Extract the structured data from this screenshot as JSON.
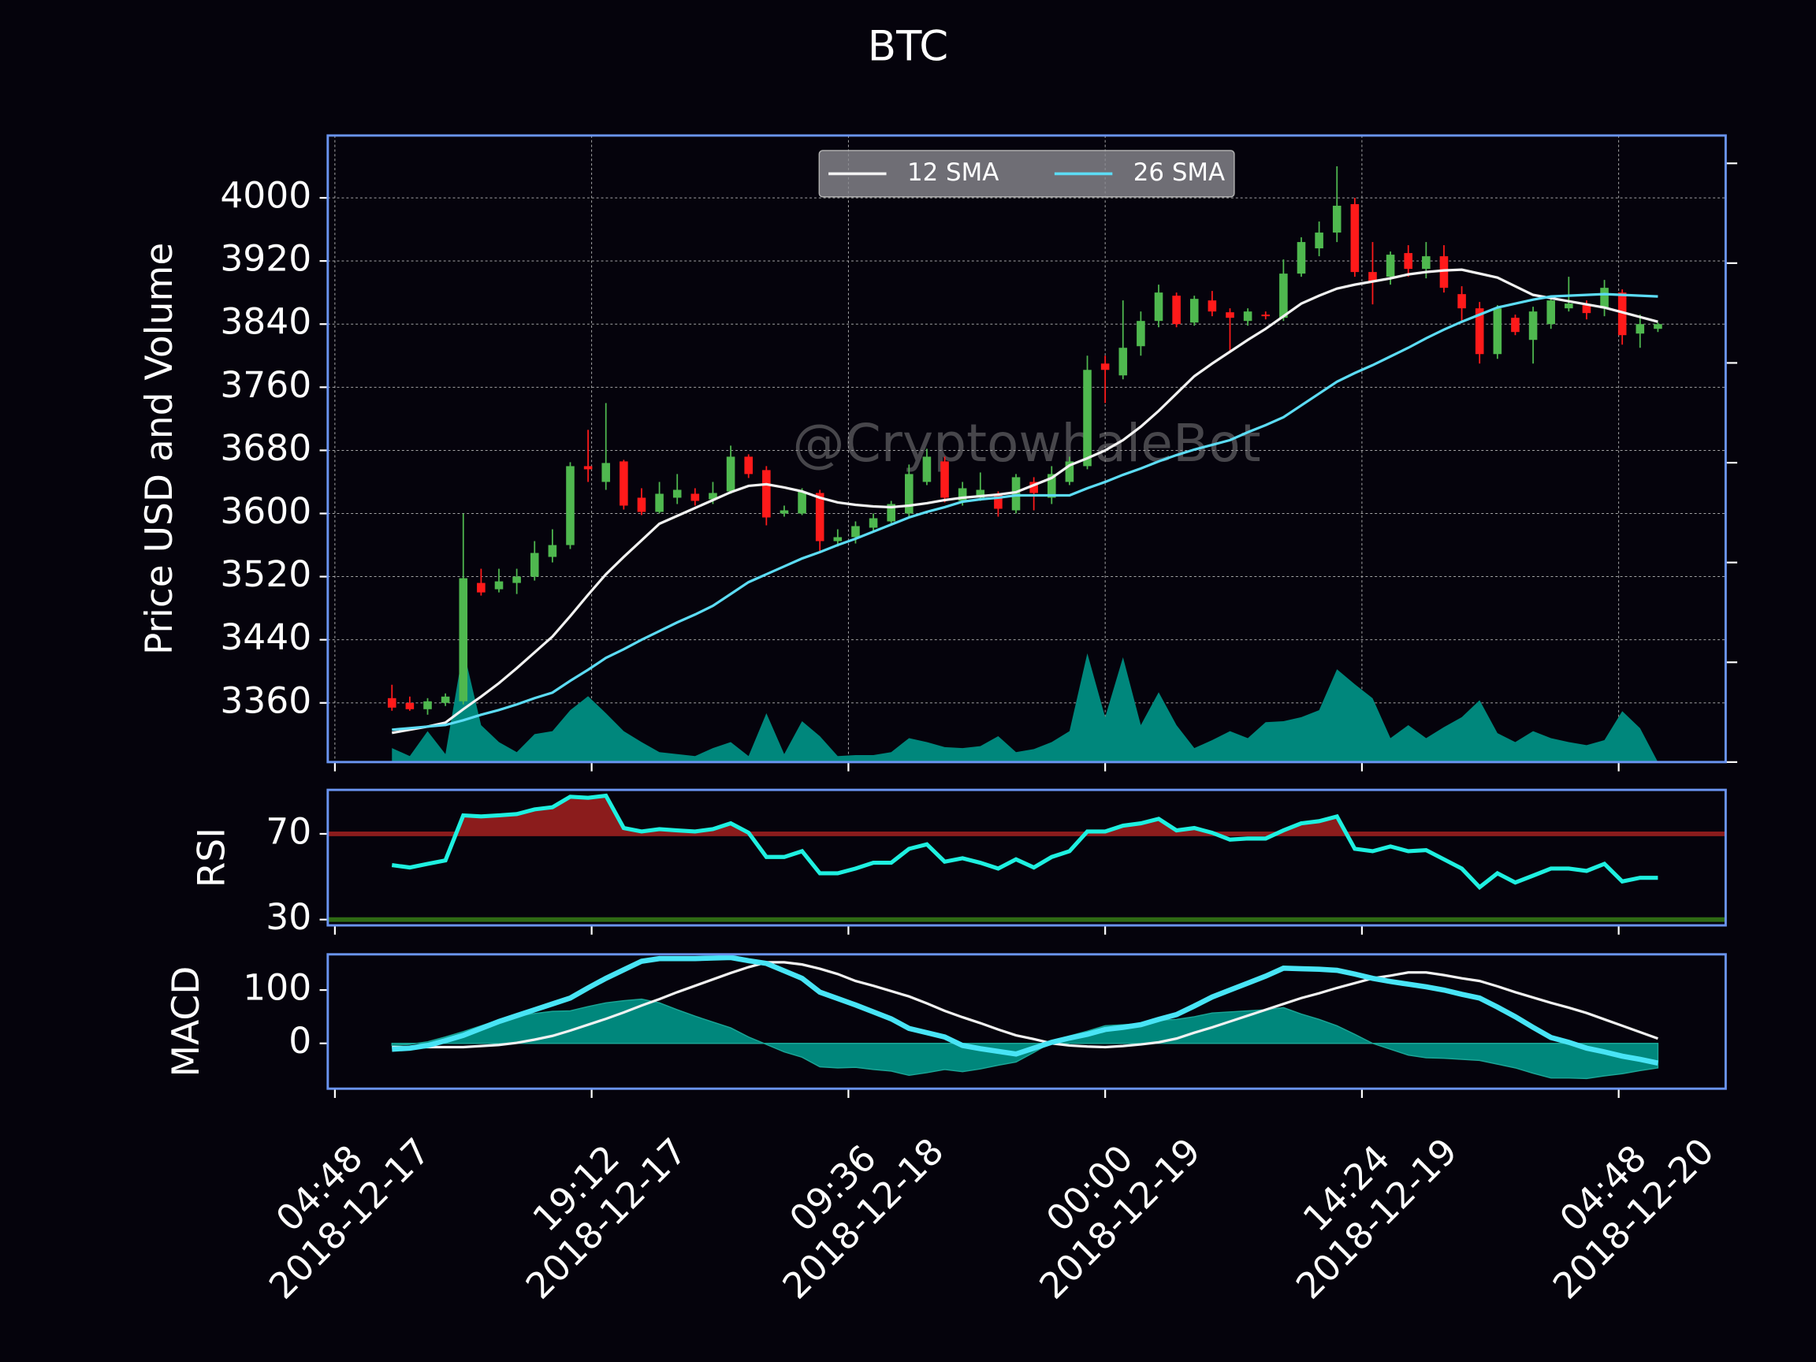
{
  "chart_data": [
    {
      "type": "candlestick",
      "title": "BTC",
      "ylabel": "Price USD and Volume",
      "watermark": "@CryptowhaleBot",
      "x": [
        "2018-12-17 08:00",
        "2018-12-17 09:00",
        "2018-12-17 10:00",
        "2018-12-17 11:00",
        "2018-12-17 12:00",
        "2018-12-17 13:00",
        "2018-12-17 14:00",
        "2018-12-17 15:00",
        "2018-12-17 16:00",
        "2018-12-17 17:00",
        "2018-12-17 18:00",
        "2018-12-17 19:00",
        "2018-12-17 20:00",
        "2018-12-17 21:00",
        "2018-12-17 22:00",
        "2018-12-17 23:00",
        "2018-12-18 00:00",
        "2018-12-18 01:00",
        "2018-12-18 02:00",
        "2018-12-18 03:00",
        "2018-12-18 04:00",
        "2018-12-18 05:00",
        "2018-12-18 06:00",
        "2018-12-18 07:00",
        "2018-12-18 08:00",
        "2018-12-18 09:00",
        "2018-12-18 10:00",
        "2018-12-18 11:00",
        "2018-12-18 12:00",
        "2018-12-18 13:00",
        "2018-12-18 14:00",
        "2018-12-18 15:00",
        "2018-12-18 16:00",
        "2018-12-18 17:00",
        "2018-12-18 18:00",
        "2018-12-18 19:00",
        "2018-12-18 20:00",
        "2018-12-18 21:00",
        "2018-12-18 22:00",
        "2018-12-18 23:00",
        "2018-12-19 00:00",
        "2018-12-19 01:00",
        "2018-12-19 02:00",
        "2018-12-19 03:00",
        "2018-12-19 04:00",
        "2018-12-19 05:00",
        "2018-12-19 06:00",
        "2018-12-19 07:00",
        "2018-12-19 08:00",
        "2018-12-19 09:00",
        "2018-12-19 10:00",
        "2018-12-19 11:00",
        "2018-12-19 12:00",
        "2018-12-19 13:00",
        "2018-12-19 14:00",
        "2018-12-19 15:00",
        "2018-12-19 16:00",
        "2018-12-19 17:00",
        "2018-12-19 18:00",
        "2018-12-19 19:00",
        "2018-12-19 20:00",
        "2018-12-19 21:00",
        "2018-12-19 22:00",
        "2018-12-19 23:00",
        "2018-12-20 00:00",
        "2018-12-20 01:00",
        "2018-12-20 02:00",
        "2018-12-20 03:00",
        "2018-12-20 04:00",
        "2018-12-20 05:00",
        "2018-12-20 06:00",
        "2018-12-20 07:00"
      ],
      "open": [
        3366,
        3360,
        3352,
        3360,
        3362,
        3512,
        3504,
        3512,
        3520,
        3545,
        3560,
        3660,
        3640,
        3666,
        3620,
        3602,
        3620,
        3625,
        3618,
        3628,
        3672,
        3655,
        3600,
        3600,
        3626,
        3565,
        3570,
        3582,
        3590,
        3600,
        3640,
        3666,
        3616,
        3620,
        3624,
        3604,
        3640,
        3620,
        3640,
        3660,
        3790,
        3775,
        3812,
        3844,
        3876,
        3842,
        3870,
        3855,
        3844,
        3852,
        3848,
        3904,
        3936,
        3956,
        3992,
        3906,
        3900,
        3930,
        3910,
        3926,
        3878,
        3860,
        3802,
        3848,
        3820,
        3840,
        3860,
        3864,
        3860,
        3880,
        3828,
        3834
      ],
      "high": [
        3383,
        3368,
        3366,
        3372,
        3600,
        3530,
        3530,
        3530,
        3565,
        3580,
        3665,
        3706,
        3740,
        3668,
        3632,
        3640,
        3650,
        3632,
        3640,
        3686,
        3675,
        3660,
        3610,
        3632,
        3630,
        3580,
        3590,
        3600,
        3616,
        3662,
        3682,
        3672,
        3640,
        3652,
        3628,
        3650,
        3646,
        3660,
        3672,
        3800,
        3800,
        3870,
        3856,
        3890,
        3880,
        3876,
        3882,
        3860,
        3860,
        3856,
        3922,
        3950,
        3970,
        4040,
        4000,
        3944,
        3932,
        3940,
        3944,
        3940,
        3888,
        3868,
        3864,
        3852,
        3862,
        3874,
        3900,
        3870,
        3896,
        3884,
        3852,
        3842
      ],
      "low": [
        3350,
        3350,
        3345,
        3356,
        3358,
        3496,
        3500,
        3498,
        3515,
        3538,
        3555,
        3640,
        3630,
        3605,
        3598,
        3600,
        3612,
        3610,
        3612,
        3625,
        3645,
        3585,
        3596,
        3598,
        3552,
        3558,
        3562,
        3578,
        3588,
        3595,
        3636,
        3614,
        3610,
        3616,
        3596,
        3600,
        3604,
        3612,
        3636,
        3656,
        3740,
        3770,
        3800,
        3836,
        3836,
        3838,
        3850,
        3805,
        3838,
        3846,
        3844,
        3900,
        3926,
        3944,
        3900,
        3865,
        3890,
        3900,
        3898,
        3880,
        3842,
        3790,
        3796,
        3826,
        3790,
        3834,
        3856,
        3846,
        3850,
        3814,
        3810,
        3830
      ],
      "close": [
        3354,
        3352,
        3362,
        3368,
        3518,
        3500,
        3514,
        3520,
        3550,
        3560,
        3660,
        3656,
        3664,
        3610,
        3602,
        3625,
        3630,
        3616,
        3626,
        3672,
        3650,
        3595,
        3604,
        3628,
        3565,
        3570,
        3584,
        3594,
        3612,
        3650,
        3672,
        3620,
        3632,
        3630,
        3606,
        3646,
        3626,
        3650,
        3666,
        3782,
        3782,
        3810,
        3844,
        3880,
        3840,
        3872,
        3856,
        3848,
        3856,
        3850,
        3904,
        3944,
        3956,
        3990,
        3906,
        3894,
        3928,
        3910,
        3926,
        3886,
        3860,
        3802,
        3860,
        3830,
        3856,
        3870,
        3866,
        3854,
        3886,
        3826,
        3840,
        3840
      ],
      "up_color": "#4fb84f",
      "down_color": "#ff1a1a",
      "series": [
        {
          "name": "12 SMA",
          "color": "#f2f2f2",
          "values": [
            3322,
            3326,
            3330,
            3335,
            3352,
            3368,
            3385,
            3404,
            3424,
            3444,
            3470,
            3497,
            3523,
            3545,
            3566,
            3587,
            3597,
            3607,
            3617,
            3627,
            3635,
            3637,
            3633,
            3628,
            3620,
            3614,
            3611,
            3609,
            3608,
            3610,
            3613,
            3617,
            3620,
            3622,
            3624,
            3627,
            3636,
            3645,
            3661,
            3670,
            3680,
            3693,
            3710,
            3730,
            3752,
            3774,
            3790,
            3805,
            3820,
            3834,
            3850,
            3866,
            3876,
            3885,
            3890,
            3894,
            3898,
            3903,
            3906,
            3908,
            3909,
            3904,
            3899,
            3888,
            3877,
            3873,
            3869,
            3865,
            3861,
            3855,
            3849,
            3843
          ]
        },
        {
          "name": "26 SMA",
          "color": "#5cdcf5",
          "values": [
            3326,
            3328,
            3330,
            3332,
            3338,
            3345,
            3351,
            3358,
            3366,
            3373,
            3388,
            3402,
            3417,
            3428,
            3440,
            3451,
            3462,
            3472,
            3483,
            3498,
            3513,
            3523,
            3533,
            3543,
            3551,
            3560,
            3568,
            3577,
            3586,
            3595,
            3602,
            3608,
            3615,
            3618,
            3620,
            3623,
            3623,
            3623,
            3623,
            3632,
            3640,
            3649,
            3657,
            3666,
            3674,
            3681,
            3687,
            3693,
            3703,
            3712,
            3722,
            3737,
            3752,
            3767,
            3778,
            3788,
            3799,
            3810,
            3822,
            3833,
            3843,
            3852,
            3861,
            3866,
            3871,
            3875,
            3876,
            3877,
            3878,
            3877,
            3876,
            3875
          ]
        }
      ],
      "volume": [
        140,
        60,
        310,
        80,
        1130,
        370,
        200,
        100,
        280,
        310,
        520,
        660,
        490,
        310,
        200,
        100,
        80,
        60,
        140,
        200,
        60,
        490,
        80,
        410,
        260,
        60,
        70,
        70,
        100,
        240,
        200,
        150,
        140,
        160,
        260,
        100,
        130,
        200,
        310,
        1090,
        450,
        1050,
        370,
        700,
        370,
        140,
        220,
        310,
        240,
        400,
        410,
        450,
        520,
        930,
        780,
        640,
        240,
        370,
        240,
        350,
        450,
        620,
        290,
        200,
        310,
        240,
        200,
        170,
        220,
        510,
        340,
        0
      ],
      "volume_color": "#00877c",
      "xlim": [
        "2018-12-17 04:24",
        "2018-12-20 10:48"
      ],
      "xticks": [
        {
          "value": "2018-12-17 04:48",
          "label": "04:48\n2018-12-17"
        },
        {
          "value": "2018-12-17 19:12",
          "label": "19:12\n2018-12-17"
        },
        {
          "value": "2018-12-18 09:36",
          "label": "09:36\n2018-12-18"
        },
        {
          "value": "2018-12-19 00:00",
          "label": "00:00\n2018-12-19"
        },
        {
          "value": "2018-12-19 14:24",
          "label": "14:24\n2018-12-19"
        },
        {
          "value": "2018-12-20 04:48",
          "label": "04:48\n2018-12-20"
        }
      ],
      "ylim": [
        3285,
        4079
      ],
      "yticks": [
        3360,
        3440,
        3520,
        3600,
        3680,
        3760,
        3840,
        3920,
        4000
      ],
      "y2lim": [
        0,
        6279
      ],
      "y2ticks": [
        0,
        1000,
        2000,
        3000,
        4000,
        5000,
        6000
      ],
      "grid": true,
      "legend": "upper center"
    },
    {
      "type": "line",
      "ylabel": "RSI",
      "color": "#1ef0e0",
      "values": [
        55.4,
        54.3,
        56,
        57.6,
        78.6,
        78.1,
        78.6,
        79.2,
        81.4,
        82.4,
        87.3,
        86.8,
        87.8,
        72.7,
        71.1,
        72.2,
        71.6,
        71.1,
        72.2,
        74.9,
        70.5,
        59.2,
        59.2,
        61.9,
        51.6,
        51.6,
        53.8,
        56.5,
        56.5,
        63,
        65.1,
        57,
        58.6,
        56.5,
        53.8,
        58.1,
        54.3,
        59.2,
        61.9,
        71.1,
        71.1,
        73.8,
        74.9,
        77,
        71.6,
        72.7,
        70.5,
        67.3,
        67.8,
        67.8,
        71.6,
        74.9,
        75.9,
        78.1,
        63,
        61.9,
        64.1,
        61.9,
        62.4,
        58.1,
        53.8,
        45.1,
        51.6,
        47.3,
        50.5,
        53.8,
        53.8,
        52.7,
        56,
        47.8,
        49.5,
        49.5
      ],
      "levels": [
        {
          "value": 70,
          "color": "#8b1c1c",
          "side": "above"
        },
        {
          "value": 30,
          "color": "#2f6a14",
          "side": "below"
        }
      ],
      "ylim": [
        27.3,
        90.5
      ],
      "yticks": [
        30,
        70
      ]
    },
    {
      "type": "macd",
      "ylabel": "MACD",
      "macd_color": "#48e4f5",
      "signal_color": "#f2f2f2",
      "histogram_color": "#00877c",
      "macd": [
        -11,
        -9,
        -4,
        5,
        15,
        28,
        41,
        52,
        63,
        74,
        85,
        104,
        122,
        138,
        154,
        159,
        159,
        159,
        160,
        161,
        155,
        150,
        136,
        122,
        96,
        84,
        72,
        59,
        46,
        28,
        20,
        12,
        -4,
        -10,
        -15,
        -20,
        -9,
        2,
        10,
        17,
        26,
        30,
        35,
        45,
        54,
        70,
        87,
        100,
        113,
        126,
        141,
        140,
        139,
        137,
        130,
        122,
        116,
        111,
        106,
        100,
        92,
        85,
        68,
        50,
        30,
        11,
        2,
        -9,
        -16,
        -24,
        -30,
        -37
      ],
      "signal": [
        -7,
        -7,
        -7,
        -7,
        -7,
        -5,
        -3,
        1,
        7,
        14,
        24,
        35,
        46,
        58,
        71,
        83,
        96,
        108,
        120,
        132,
        143,
        152,
        152,
        148,
        140,
        130,
        117,
        108,
        98,
        88,
        75,
        61,
        49,
        38,
        26,
        15,
        8,
        0,
        -4,
        -6,
        -7,
        -5,
        -2,
        2,
        9,
        20,
        30,
        41,
        52,
        63,
        74,
        85,
        94,
        104,
        113,
        122,
        127,
        133,
        133,
        128,
        122,
        117,
        107,
        96,
        86,
        76,
        67,
        57,
        45,
        33,
        21,
        9
      ],
      "histogram": [
        -4,
        -2,
        3,
        12,
        22,
        33,
        44,
        51,
        56,
        60,
        61,
        69,
        76,
        80,
        83,
        76,
        63,
        51,
        40,
        29,
        12,
        -2,
        -16,
        -26,
        -44,
        -46,
        -45,
        -49,
        -52,
        -60,
        -55,
        -49,
        -53,
        -48,
        -41,
        -35,
        -17,
        2,
        14,
        23,
        33,
        35,
        37,
        43,
        45,
        50,
        57,
        59,
        61,
        63,
        67,
        55,
        45,
        33,
        17,
        0,
        -11,
        -22,
        -27,
        -28,
        -30,
        -32,
        -39,
        -46,
        -56,
        -65,
        -65,
        -66,
        -61,
        -57,
        -51,
        -46
      ],
      "ylim": [
        -85,
        167
      ],
      "yticks": [
        0,
        100
      ]
    }
  ]
}
